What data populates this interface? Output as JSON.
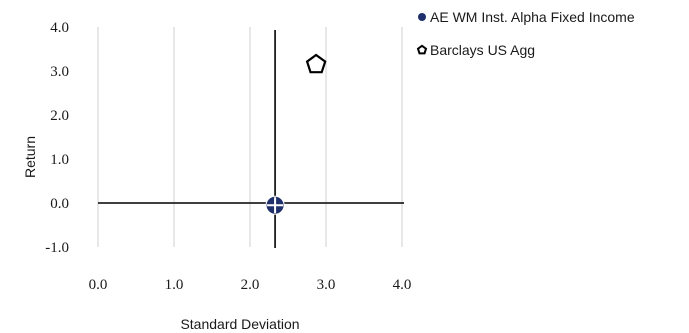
{
  "chart_data": {
    "type": "scatter",
    "title": "",
    "xlabel": "Standard Deviation",
    "ylabel": "Return",
    "xlim": [
      0.0,
      4.0
    ],
    "ylim": [
      -1.0,
      4.0
    ],
    "x_ticks": [
      "0.0",
      "1.0",
      "2.0",
      "3.0",
      "4.0"
    ],
    "y_ticks": [
      "-1.0",
      "0.0",
      "1.0",
      "2.0",
      "3.0",
      "4.0"
    ],
    "x_tick_values": [
      0,
      1,
      2,
      3,
      4
    ],
    "y_tick_values": [
      -1,
      0,
      1,
      2,
      3,
      4
    ],
    "grid": "vertical",
    "legend_position": "right",
    "reference_lines": {
      "x": 2.33,
      "y": 0.0
    },
    "series": [
      {
        "name": "AE WM Inst. Alpha Fixed Income",
        "marker": "circle-cross",
        "color": "#1f2f6b",
        "x": [
          2.33
        ],
        "y": [
          -0.05
        ]
      },
      {
        "name": "Barclays US Agg",
        "marker": "pentagon",
        "color": "#ffffff",
        "x": [
          2.87
        ],
        "y": [
          3.17
        ]
      }
    ]
  }
}
